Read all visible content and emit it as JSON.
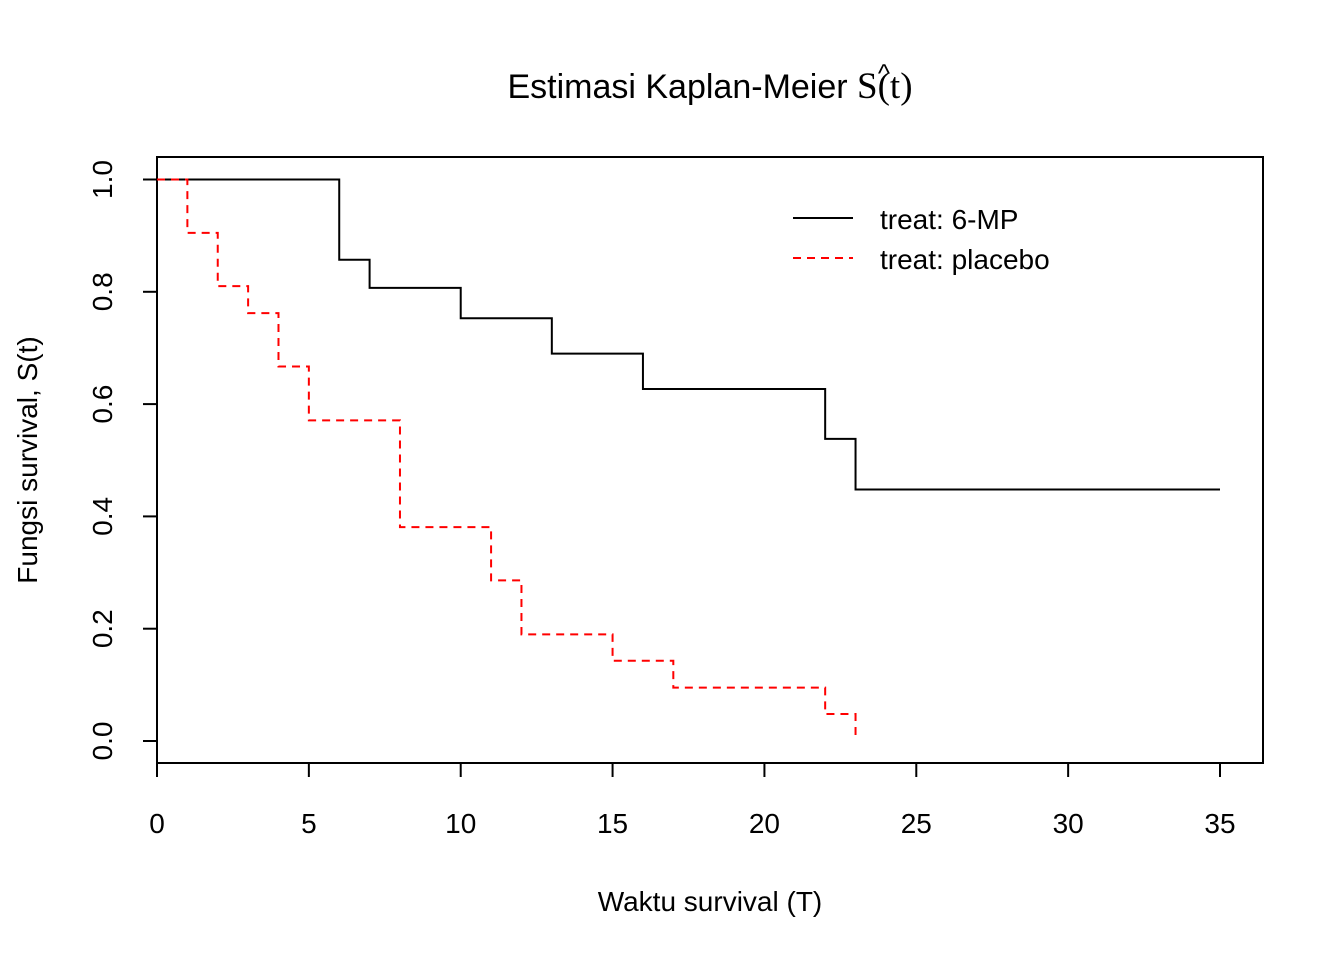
{
  "chart_data": {
    "type": "line",
    "title_prefix": "Estimasi Kaplan-Meier ",
    "title_math": "S(t)",
    "title_hat": "^",
    "xlabel": "Waktu survival (T)",
    "ylabel": "Fungsi survival, S(t)",
    "xlim": [
      0,
      35
    ],
    "ylim": [
      0,
      1
    ],
    "x_ticks": [
      "0",
      "5",
      "10",
      "15",
      "20",
      "25",
      "30",
      "35"
    ],
    "y_ticks": [
      "0.0",
      "0.2",
      "0.4",
      "0.6",
      "0.8",
      "1.0"
    ],
    "grid": false,
    "legend_position": "top-right",
    "series": [
      {
        "name": "treat: 6-MP",
        "color": "#000000",
        "line_style": "solid",
        "step": true,
        "x": [
          0,
          6,
          7,
          10,
          13,
          16,
          22,
          23,
          35
        ],
        "y": [
          1.0,
          0.857,
          0.807,
          0.753,
          0.69,
          0.627,
          0.538,
          0.448,
          0.448
        ]
      },
      {
        "name": "treat: placebo",
        "color": "#ff0000",
        "line_style": "dashed",
        "step": true,
        "x": [
          0,
          1,
          2,
          3,
          4,
          5,
          8,
          11,
          12,
          15,
          17,
          22,
          23
        ],
        "y": [
          1.0,
          0.905,
          0.81,
          0.762,
          0.667,
          0.571,
          0.381,
          0.286,
          0.19,
          0.143,
          0.095,
          0.048,
          0.0
        ]
      }
    ]
  }
}
